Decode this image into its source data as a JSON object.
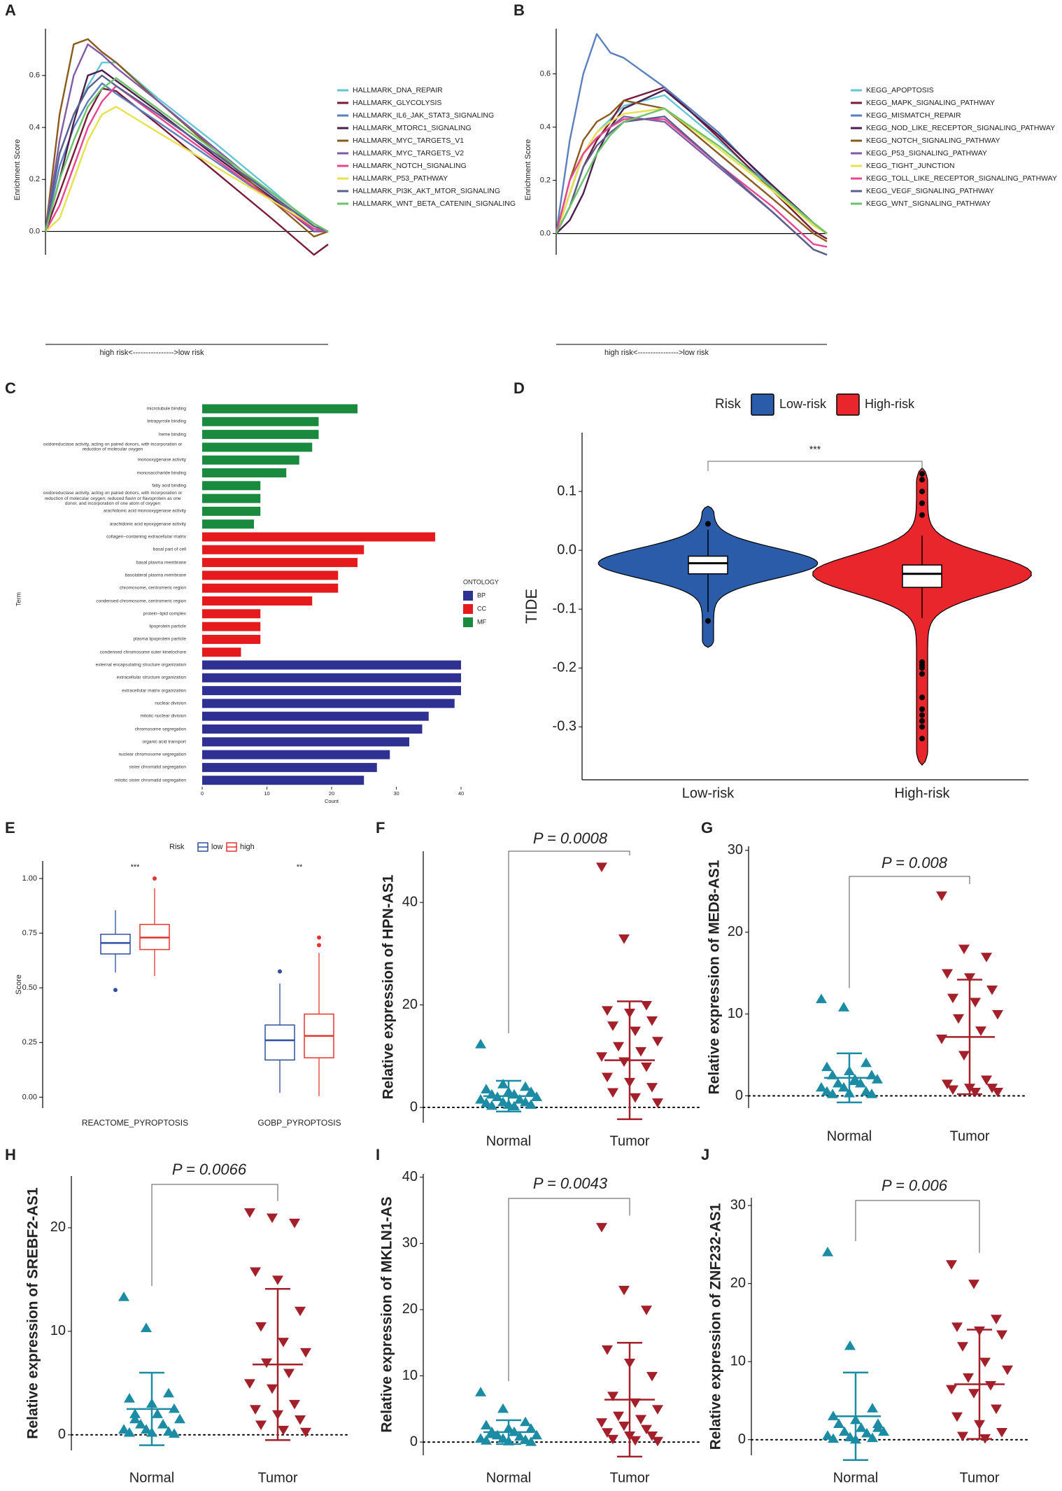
{
  "chart_data": [
    {
      "label": "A",
      "type": "line",
      "ylabel": "Enrichment Score",
      "xlabel": "high risk<---------------->low risk",
      "x": [
        0,
        0.05,
        0.1,
        0.15,
        0.2,
        0.25,
        0.4,
        0.6,
        0.8,
        0.95,
        1.0
      ],
      "xlim": [
        0,
        1
      ],
      "ylim": [
        -0.09,
        0.78
      ],
      "yticks": [
        {
          "value": 0,
          "label": "0.0"
        },
        0.2,
        0.4,
        0.6
      ],
      "series": [
        {
          "name": "HALLMARK_DNA_REPAIR",
          "color": "#62c6d6",
          "values": [
            0,
            0.3,
            0.45,
            0.56,
            0.65,
            0.65,
            0.51,
            0.34,
            0.16,
            0.02,
            0
          ]
        },
        {
          "name": "HALLMARK_GLYCOLYSIS",
          "color": "#7a1a3a",
          "values": [
            0,
            0.15,
            0.3,
            0.45,
            0.55,
            0.54,
            0.41,
            0.23,
            0.05,
            -0.09,
            -0.05
          ]
        },
        {
          "name": "HALLMARK_IL6_JAK_STAT3_SIGNALING",
          "color": "#5a80c0",
          "values": [
            0,
            0.25,
            0.4,
            0.5,
            0.57,
            0.53,
            0.42,
            0.27,
            0.12,
            0.01,
            0
          ]
        },
        {
          "name": "HALLMARK_MTORC1_SIGNALING",
          "color": "#4b1e4e",
          "values": [
            0,
            0.2,
            0.42,
            0.6,
            0.62,
            0.58,
            0.46,
            0.29,
            0.13,
            0.0,
            0
          ]
        },
        {
          "name": "HALLMARK_MYC_TARGETS_V1",
          "color": "#8a5a1c",
          "values": [
            0,
            0.45,
            0.72,
            0.74,
            0.69,
            0.65,
            0.5,
            0.31,
            0.12,
            -0.02,
            0
          ]
        },
        {
          "name": "HALLMARK_MYC_TARGETS_V2",
          "color": "#7f5ba8",
          "values": [
            0,
            0.35,
            0.6,
            0.72,
            0.68,
            0.63,
            0.5,
            0.32,
            0.14,
            0.0,
            0
          ]
        },
        {
          "name": "HALLMARK_NOTCH_SIGNALING",
          "color": "#e9458f",
          "values": [
            0,
            0.1,
            0.25,
            0.4,
            0.5,
            0.56,
            0.44,
            0.28,
            0.12,
            0.01,
            0
          ]
        },
        {
          "name": "HALLMARK_P53_PATHWAY",
          "color": "#e6e24c",
          "values": [
            0,
            0.05,
            0.2,
            0.35,
            0.45,
            0.48,
            0.38,
            0.25,
            0.12,
            0.02,
            0
          ]
        },
        {
          "name": "HALLMARK_PI3K_AKT_MTOR_SIGNALING",
          "color": "#5b5f8f",
          "values": [
            0,
            0.3,
            0.45,
            0.55,
            0.6,
            0.56,
            0.45,
            0.3,
            0.14,
            0.02,
            0
          ]
        },
        {
          "name": "HALLMARK_WNT_BETA_CATENIN_SIGNALING",
          "color": "#6cc36a",
          "values": [
            0,
            0.2,
            0.35,
            0.48,
            0.55,
            0.59,
            0.47,
            0.31,
            0.15,
            0.03,
            0
          ]
        }
      ]
    },
    {
      "label": "B",
      "type": "line",
      "ylabel": "Enrichment Score",
      "xlabel": "high risk<---------------->low risk",
      "x": [
        0,
        0.05,
        0.1,
        0.15,
        0.2,
        0.25,
        0.4,
        0.6,
        0.8,
        0.95,
        1.0
      ],
      "xlim": [
        0,
        1
      ],
      "ylim": [
        -0.08,
        0.77
      ],
      "yticks": [
        {
          "value": 0,
          "label": "0.0"
        },
        0.2,
        0.4,
        0.6
      ],
      "series": [
        {
          "name": "KEGG_APOPTOSIS",
          "color": "#62c6d6",
          "values": [
            0,
            0.15,
            0.3,
            0.38,
            0.43,
            0.48,
            0.52,
            0.35,
            0.17,
            0.03,
            0
          ]
        },
        {
          "name": "KEGG_MAPK_SIGNALING_PATHWAY",
          "color": "#7a1a3a",
          "values": [
            0,
            0.1,
            0.25,
            0.35,
            0.42,
            0.5,
            0.55,
            0.36,
            0.16,
            0.01,
            -0.02
          ]
        },
        {
          "name": "KEGG_MISMATCH_REPAIR",
          "color": "#5a80c0",
          "values": [
            0,
            0.35,
            0.6,
            0.75,
            0.68,
            0.66,
            0.55,
            0.38,
            0.17,
            null,
            null
          ]
        },
        {
          "name": "KEGG_NOD_LIKE_RECEPTOR_SIGNALING_PATHWAY",
          "color": "#4b1e4e",
          "values": [
            0,
            0.05,
            0.15,
            0.3,
            0.4,
            0.47,
            0.54,
            0.37,
            0.18,
            0.04,
            0
          ]
        },
        {
          "name": "KEGG_NOTCH_SIGNALING_PATHWAY",
          "color": "#8a5a1c",
          "values": [
            0,
            0.2,
            0.35,
            0.42,
            0.45,
            0.5,
            0.47,
            0.3,
            0.13,
            0.0,
            -0.03
          ]
        },
        {
          "name": "KEGG_P53_SIGNALING_PATHWAY",
          "color": "#7f5ba8",
          "values": [
            0,
            0.15,
            0.3,
            0.36,
            0.4,
            0.44,
            0.42,
            0.25,
            0.08,
            -0.06,
            -0.08
          ]
        },
        {
          "name": "KEGG_TIGHT_JUNCTION",
          "color": "#e6e24c",
          "values": [
            0,
            0.15,
            0.3,
            0.38,
            0.42,
            0.45,
            0.47,
            0.32,
            0.16,
            0.03,
            0
          ]
        },
        {
          "name": "KEGG_TOLL_LIKE_RECEPTOR_SIGNALING_PATHWAY",
          "color": "#e9458f",
          "values": [
            0,
            0.2,
            0.3,
            0.36,
            0.4,
            0.43,
            0.43,
            0.26,
            0.1,
            -0.04,
            -0.05
          ]
        },
        {
          "name": "KEGG_VEGF_SIGNALING_PATHWAY",
          "color": "#5b5f8f",
          "values": [
            0,
            0.1,
            0.25,
            0.33,
            0.38,
            0.42,
            0.44,
            0.26,
            0.08,
            -0.06,
            -0.08
          ]
        },
        {
          "name": "KEGG_WNT_SIGNALING_PATHWAY",
          "color": "#6cc36a",
          "values": [
            0,
            0.1,
            0.2,
            0.3,
            0.37,
            0.42,
            0.47,
            0.33,
            0.17,
            0.04,
            0
          ]
        }
      ]
    },
    {
      "label": "C",
      "type": "barh",
      "xlabel": "Count",
      "ylabel": "Term",
      "legend_title": "ONTOLOGY",
      "xlim": [
        -2,
        42
      ],
      "xticks": [
        0,
        10,
        20,
        30,
        40
      ],
      "series": [
        {
          "name": "BP",
          "color": "#2e3192",
          "categories": [
            "external encapsulating structure organization",
            "extracellular structure organization",
            "extracellular matrix organization",
            "nuclear division",
            "mitotic nuclear division",
            "chromosome segregation",
            "organic acid transport",
            "nuclear chromosome segregation",
            "sister chromatid segregation",
            "mitotic sister chromatid segregation"
          ],
          "values": [
            40,
            40,
            40,
            39,
            35,
            34,
            32,
            29,
            27,
            25
          ]
        },
        {
          "name": "CC",
          "color": "#e41a1c",
          "categories": [
            "collagen−containing extracellular matrix",
            "basal part of cell",
            "basal plasma membrane",
            "basolateral plasma membrane",
            "chromosome, centromeric region",
            "condensed chromosome, centromeric region",
            "protein−lipid complex",
            "lipoprotein particle",
            "plasma lipoprotein particle",
            "condensed chromosome outer kinetochore"
          ],
          "values": [
            36,
            25,
            24,
            21,
            21,
            17,
            9,
            9,
            9,
            6
          ]
        },
        {
          "name": "MF",
          "color": "#1a8a3f",
          "categories": [
            "microtubule binding",
            "tetrapyrrole binding",
            "heme binding",
            "oxidoreductase activity, acting on paired donors, with incorporation or reduction of molecular oxygen",
            "monooxygenase activity",
            "monosaccharide binding",
            "fatty acid binding",
            "oxidoreductase activity, acting on paired donors, with incorporation or reduction of molecular oxygen, reduced flavin or flavoprotein as one donor, and incorporation of one atom of oxygen",
            "arachidonic acid monooxygenase activity",
            "arachidonic acid epoxygenase activity"
          ],
          "values": [
            24,
            18,
            18,
            17,
            15,
            13,
            9,
            9,
            9,
            8
          ]
        }
      ]
    },
    {
      "label": "D",
      "type": "violin",
      "ylabel": "TIDE",
      "legend_title": "Risk",
      "annotation": "***",
      "categories": [
        "Low-risk",
        "High-risk"
      ],
      "ylim": [
        -0.39,
        0.2
      ],
      "yticks": [
        -0.3,
        -0.2,
        -0.1,
        {
          "value": 0,
          "label": "0.0"
        },
        0.1
      ],
      "series": [
        {
          "name": "Low-risk",
          "color": "#2a5caa",
          "min": -0.165,
          "max": 0.075,
          "q1": -0.04,
          "median": -0.022,
          "q3": -0.01,
          "whisker_low": -0.105,
          "whisker_high": 0.035,
          "outliers": [
            -0.12,
            0.045
          ]
        },
        {
          "name": "High-risk",
          "color": "#e8262b",
          "min": -0.365,
          "max": 0.14,
          "q1": -0.063,
          "median": -0.04,
          "q3": -0.025,
          "whisker_low": -0.115,
          "whisker_high": 0.025,
          "outliers": [
            0.13,
            0.12,
            0.1,
            0.08,
            0.06,
            -0.19,
            -0.195,
            -0.2,
            -0.21,
            -0.25,
            -0.27,
            -0.28,
            -0.29,
            -0.3,
            -0.32
          ]
        }
      ]
    },
    {
      "label": "E",
      "type": "boxplot",
      "ylabel": "Score",
      "legend_title": "Risk",
      "categories": [
        "REACTOME_PYROPTOSIS",
        "GOBP_PYROPTOSIS"
      ],
      "annotations": [
        "***",
        "**"
      ],
      "ylim": [
        -0.05,
        1.08
      ],
      "yticks": [
        {
          "value": 0,
          "label": "0.00"
        },
        0.25,
        {
          "value": 0.5,
          "label": "0.50"
        },
        0.75,
        {
          "value": 1,
          "label": "1.00"
        }
      ],
      "series": [
        {
          "name": "low",
          "color": "#2f4ea0",
          "whisker_low": [
            0.57,
            0.02
          ],
          "q1": [
            0.655,
            0.17
          ],
          "median": [
            0.705,
            0.26
          ],
          "q3": [
            0.745,
            0.33
          ],
          "whisker_high": [
            0.855,
            0.52
          ],
          "outliers": [
            [
              0.49
            ],
            [
              0.575
            ]
          ]
        },
        {
          "name": "high",
          "color": "#e3342f",
          "whisker_low": [
            0.555,
            0.005
          ],
          "q1": [
            0.675,
            0.18
          ],
          "median": [
            0.73,
            0.28
          ],
          "q3": [
            0.79,
            0.38
          ],
          "whisker_high": [
            0.955,
            0.66
          ],
          "outliers": [
            [
              1.0
            ],
            [
              0.695,
              0.73
            ]
          ]
        }
      ]
    },
    {
      "label": "F",
      "type": "dotplot",
      "ylabel": "Relative expression of HPN-AS1",
      "annotation": "P = 0.0008",
      "ylim": [
        -3,
        50
      ],
      "yticks": [
        0,
        20,
        40
      ],
      "series": [
        {
          "name": "Normal",
          "color": "#1b8ca3",
          "mean": 2.2,
          "sd": 3.0,
          "values": [
            12.3,
            4.5,
            4,
            3.5,
            3,
            3,
            2.5,
            2.5,
            2,
            2,
            1.5,
            1.5,
            1,
            1,
            0.8,
            0.5,
            0.5,
            0.3,
            0.2,
            2
          ]
        },
        {
          "name": "Tumor",
          "color": "#a3202a",
          "mean": 9.2,
          "sd": 11.5,
          "values": [
            47,
            33,
            20,
            19,
            18.5,
            17,
            16,
            15,
            13,
            12,
            11,
            10,
            9,
            8,
            6,
            5,
            4,
            3,
            2,
            1
          ]
        }
      ]
    },
    {
      "label": "G",
      "type": "dotplot",
      "ylabel": "Relative expression of MED8-AS1",
      "annotation": "P = 0.008",
      "ylim": [
        -1.5,
        30.5
      ],
      "yticks": [
        0,
        10,
        20,
        30
      ],
      "series": [
        {
          "name": "Normal",
          "color": "#1b8ca3",
          "mean": 2.2,
          "sd": 3.0,
          "values": [
            11.8,
            10.8,
            4,
            3.5,
            3,
            2.5,
            2.5,
            2,
            2,
            1.5,
            1.5,
            1,
            1,
            0.5,
            0.5,
            0.3,
            0.2,
            0.2,
            1.8
          ]
        },
        {
          "name": "Tumor",
          "color": "#a3202a",
          "mean": 7.2,
          "sd": 7.0,
          "values": [
            24.5,
            18,
            17,
            15,
            14.5,
            13,
            12,
            11.5,
            10,
            9.5,
            8,
            7,
            5,
            2,
            1.5,
            1,
            1,
            0.8,
            0.5,
            0.5
          ]
        }
      ]
    },
    {
      "label": "H",
      "type": "dotplot",
      "ylabel": "Relative expression of SREBF2-AS1",
      "annotation": "P = 0.0066",
      "ylim": [
        -1.5,
        25
      ],
      "yticks": [
        0,
        10,
        20
      ],
      "series": [
        {
          "name": "Normal",
          "color": "#1b8ca3",
          "mean": 2.5,
          "sd": 3.5,
          "values": [
            13.3,
            10.3,
            4,
            3.5,
            3,
            2.5,
            2,
            2,
            1.5,
            1,
            1,
            0.5,
            0.5,
            0.3,
            0.2,
            0.2,
            0.1,
            1.5
          ]
        },
        {
          "name": "Tumor",
          "color": "#a3202a",
          "mean": 6.8,
          "sd": 7.3,
          "values": [
            21.5,
            21,
            20.5,
            15.8,
            15,
            12,
            10.5,
            9,
            8,
            7,
            6,
            5,
            4.5,
            3,
            2.5,
            2,
            1.5,
            1,
            0.5,
            0.3
          ]
        }
      ]
    },
    {
      "label": "I",
      "type": "dotplot",
      "ylabel": "Relative expression of MKLN1-AS",
      "annotation": "P = 0.0043",
      "ylim": [
        -2,
        40.5
      ],
      "yticks": [
        0,
        10,
        20,
        30,
        40
      ],
      "series": [
        {
          "name": "Normal",
          "color": "#1b8ca3",
          "mean": 1.5,
          "sd": 1.8,
          "values": [
            7.5,
            5,
            3,
            2.5,
            2,
            2,
            1.5,
            1.5,
            1,
            1,
            0.8,
            0.5,
            0.5,
            0.3,
            0.2,
            0.1,
            0,
            1.2
          ]
        },
        {
          "name": "Tumor",
          "color": "#a3202a",
          "mean": 6.4,
          "sd": 8.6,
          "values": [
            32.5,
            23,
            20,
            14,
            12,
            10,
            7,
            6,
            5,
            4,
            3.5,
            3,
            2.5,
            2,
            1.5,
            1,
            1,
            0.5,
            0.3,
            0.2
          ]
        }
      ]
    },
    {
      "label": "J",
      "type": "dotplot",
      "ylabel": "Relative expression of ZNF232-AS1",
      "annotation": "P = 0.006",
      "ylim": [
        -2,
        31
      ],
      "yticks": [
        0,
        10,
        20,
        30
      ],
      "series": [
        {
          "name": "Normal",
          "color": "#1b8ca3",
          "mean": 3.0,
          "sd": 5.6,
          "values": [
            24,
            12,
            4,
            3,
            2.5,
            2,
            2,
            1.5,
            1,
            1,
            0.8,
            0.5,
            0.3,
            0.2,
            0.1,
            0,
            1.5
          ]
        },
        {
          "name": "Tumor",
          "color": "#a3202a",
          "mean": 7.1,
          "sd": 7.0,
          "values": [
            22.5,
            20,
            15.5,
            14.5,
            14,
            13.5,
            12,
            10,
            9,
            8,
            7,
            6.5,
            6,
            4,
            3,
            2,
            1,
            0.5,
            0.2
          ]
        }
      ]
    }
  ]
}
